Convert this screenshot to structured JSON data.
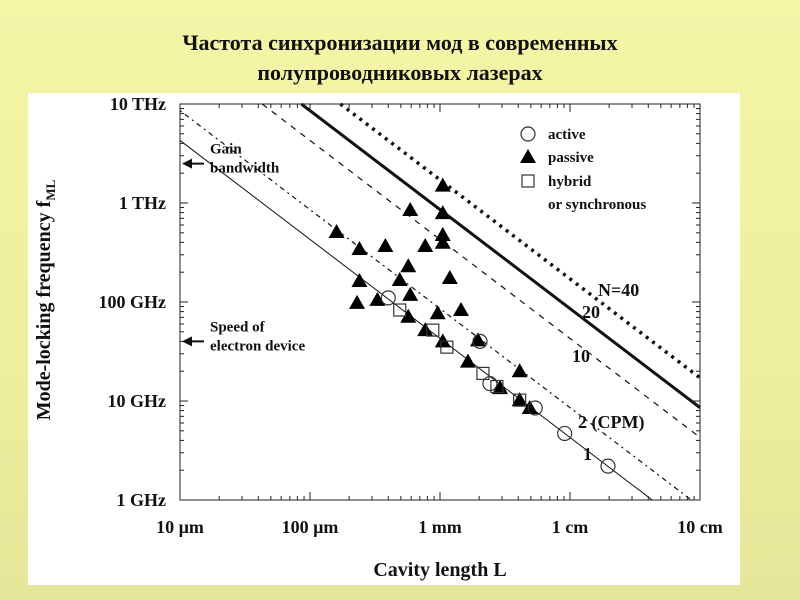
{
  "slide": {
    "title_line1": "Частота синхронизации мод в современных",
    "title_line2": "полупроводниковых лазерах"
  },
  "chart_data": {
    "type": "scatter",
    "xscale": "log",
    "yscale": "log",
    "xlabel": "Cavity length L",
    "ylabel": "Mode-locking frequency f",
    "ylabel_sub": "ML",
    "x_unit": "mm",
    "y_unit": "GHz",
    "xlim": [
      0.01,
      100
    ],
    "ylim": [
      1,
      10000
    ],
    "x_ticks": [
      {
        "value": 0.01,
        "label": "10 µm"
      },
      {
        "value": 0.1,
        "label": "100 µm"
      },
      {
        "value": 1,
        "label": "1 mm"
      },
      {
        "value": 10,
        "label": "1 cm"
      },
      {
        "value": 100,
        "label": "10 cm"
      }
    ],
    "y_ticks": [
      {
        "value": 10000,
        "label": "10 THz"
      },
      {
        "value": 1000,
        "label": "1 THz"
      },
      {
        "value": 100,
        "label": "100 GHz"
      },
      {
        "value": 10,
        "label": "10 GHz"
      },
      {
        "value": 1,
        "label": "1 GHz"
      }
    ],
    "legend": {
      "placement": "top-right",
      "entries": [
        {
          "marker": "circle",
          "label": "active"
        },
        {
          "marker": "triangle",
          "label": "passive"
        },
        {
          "marker": "square",
          "label": "hybrid",
          "label2": "or synchronous"
        }
      ]
    },
    "harmonic_lines": {
      "refractive_index": 3.5,
      "lines": [
        {
          "N": 1,
          "label": "1",
          "style": "thin-solid"
        },
        {
          "N": 2,
          "label": "2 (CPM)",
          "style": "dash-dot"
        },
        {
          "N": 10,
          "label": "10",
          "style": "dashed"
        },
        {
          "N": 20,
          "label": "20",
          "style": "thick-solid"
        },
        {
          "N": 40,
          "label": "N=40",
          "style": "thick-dotted"
        }
      ]
    },
    "annotations": [
      {
        "text": "Gain",
        "text2": "bandwidth",
        "arrow_at_f": 2500
      },
      {
        "text": "Speed of",
        "text2": "electron device",
        "arrow_at_f": 40
      }
    ],
    "series": [
      {
        "name": "passive",
        "marker": "triangle",
        "points": [
          [
            1.05,
            1500
          ],
          [
            0.59,
            850
          ],
          [
            1.05,
            790
          ],
          [
            0.16,
            510
          ],
          [
            1.05,
            475
          ],
          [
            0.24,
            343
          ],
          [
            0.38,
            368
          ],
          [
            0.77,
            368
          ],
          [
            1.05,
            397
          ],
          [
            0.57,
            230
          ],
          [
            0.24,
            163
          ],
          [
            0.49,
            167
          ],
          [
            1.19,
            175
          ],
          [
            0.23,
            98
          ],
          [
            0.33,
            105
          ],
          [
            0.59,
            118
          ],
          [
            0.96,
            77
          ],
          [
            1.45,
            83
          ],
          [
            0.57,
            71
          ],
          [
            0.77,
            52
          ],
          [
            1.05,
            40
          ],
          [
            1.96,
            41
          ],
          [
            1.64,
            25
          ],
          [
            4.1,
            20
          ],
          [
            2.9,
            13.5
          ],
          [
            4.1,
            10.2
          ],
          [
            4.9,
            8.5
          ]
        ]
      },
      {
        "name": "hybrid",
        "marker": "square",
        "points": [
          [
            0.49,
            83
          ],
          [
            0.88,
            52
          ],
          [
            1.13,
            35
          ],
          [
            2.14,
            19
          ],
          [
            2.74,
            14
          ],
          [
            4.1,
            10.2
          ]
        ]
      },
      {
        "name": "active",
        "marker": "circle",
        "points": [
          [
            0.4,
            110
          ],
          [
            2.03,
            40
          ],
          [
            2.42,
            15
          ],
          [
            5.4,
            8.5
          ],
          [
            9.1,
            4.7
          ],
          [
            19.6,
            2.2
          ]
        ]
      }
    ]
  }
}
